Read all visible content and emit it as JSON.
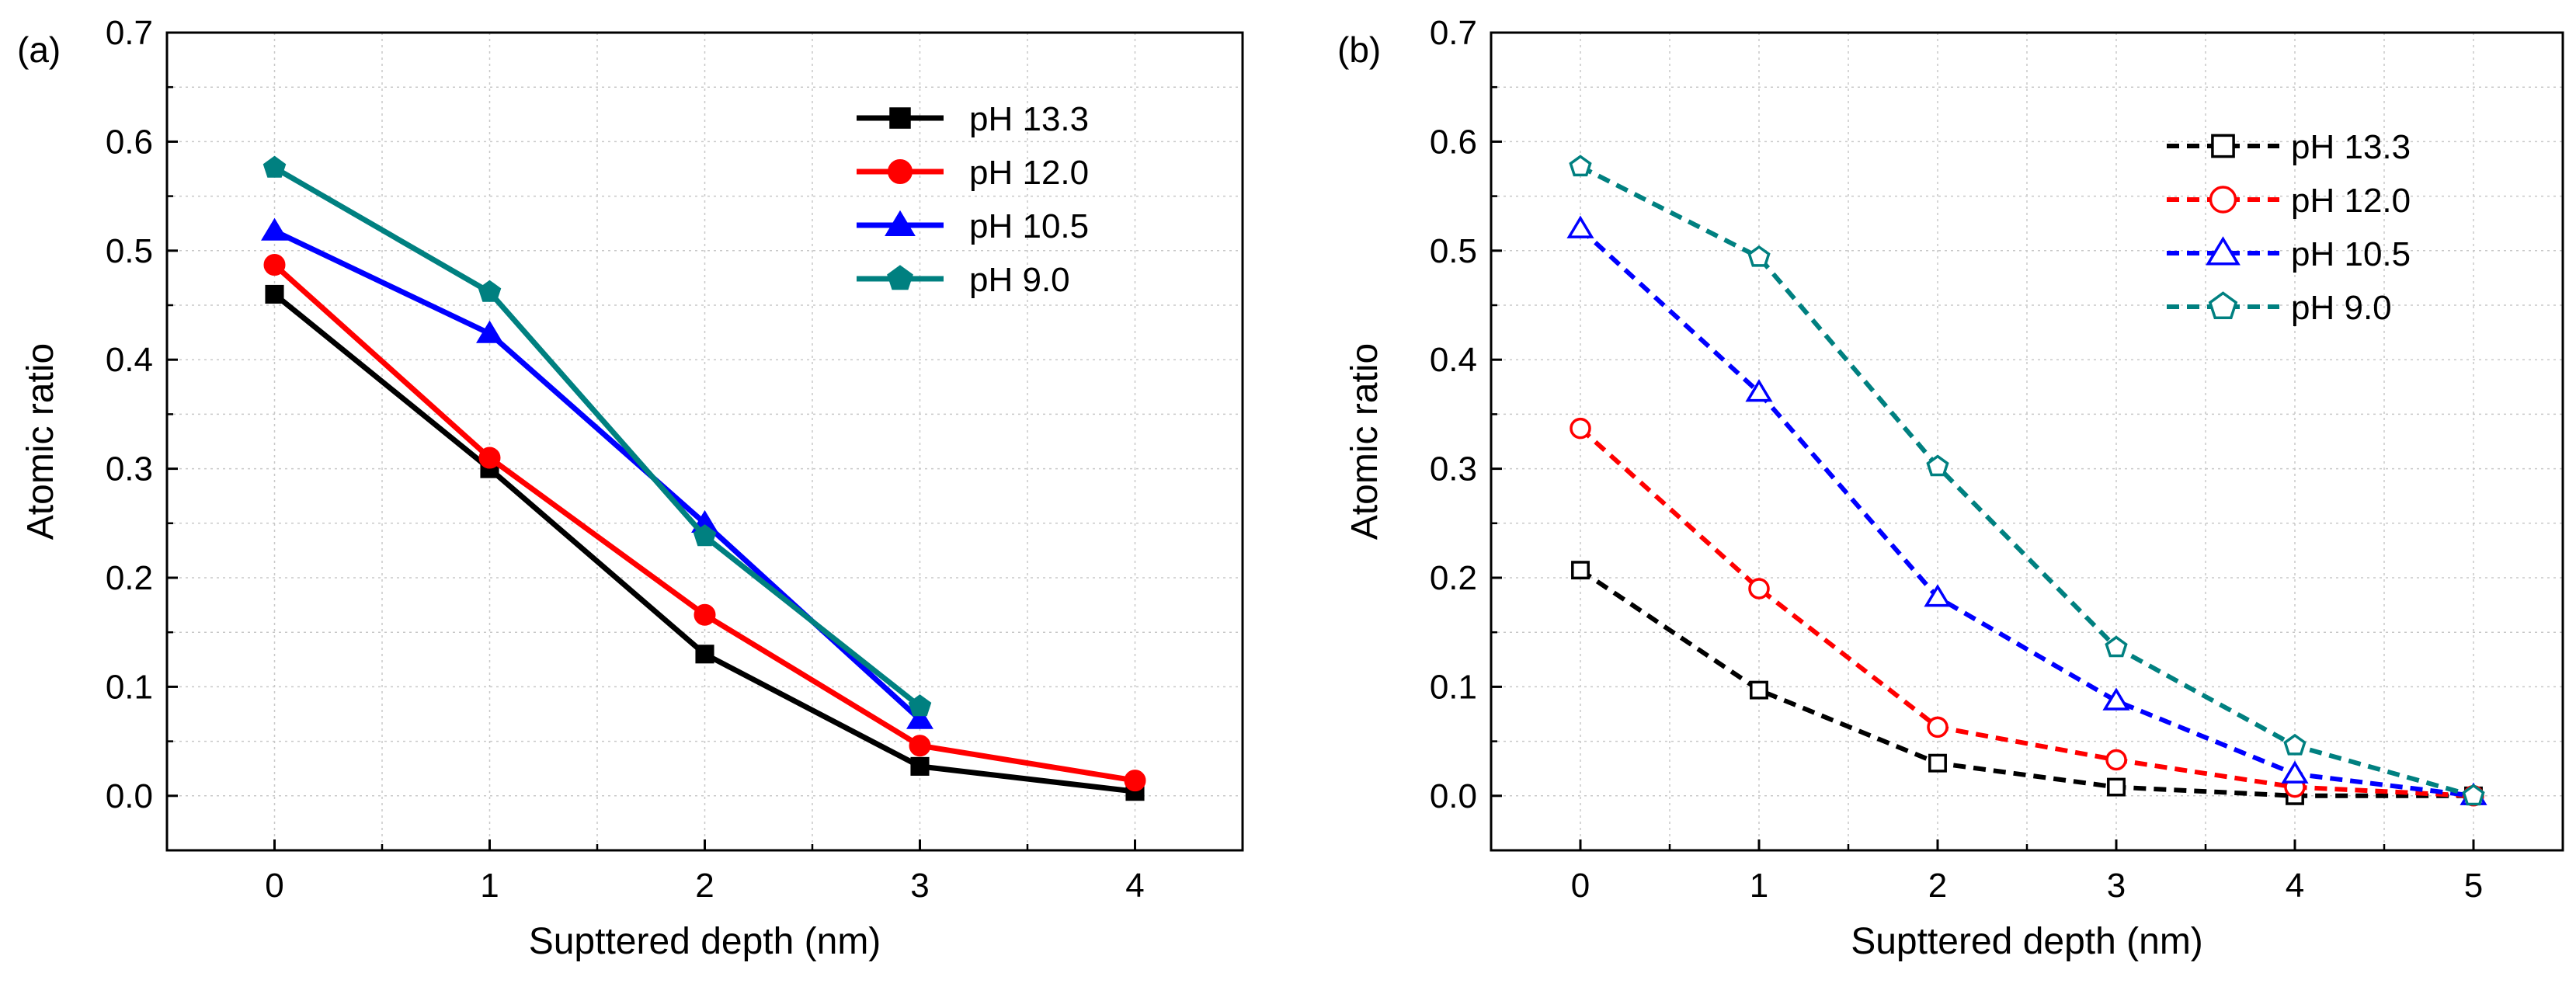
{
  "chart_data": [
    {
      "panel_label": "(a)",
      "type": "line",
      "xlabel": "Supttered depth (nm)",
      "ylabel": "Atomic ratio",
      "xlim": [
        -0.5,
        4.5
      ],
      "ylim": [
        -0.05,
        0.7
      ],
      "x_ticks": [
        "0",
        "1",
        "2",
        "3",
        "4"
      ],
      "y_ticks": [
        "0.0",
        "0.1",
        "0.2",
        "0.3",
        "0.4",
        "0.5",
        "0.6",
        "0.7"
      ],
      "grid": true,
      "legend_position": "top-right",
      "marker_fill": "filled",
      "line_style": "solid",
      "series": [
        {
          "name": "pH 13.3",
          "color": "#000000",
          "marker": "square",
          "x": [
            0,
            1,
            2,
            3,
            4
          ],
          "values": [
            0.46,
            0.3,
            0.13,
            0.027,
            0.004
          ]
        },
        {
          "name": "pH 12.0",
          "color": "#ff0000",
          "marker": "circle",
          "x": [
            0,
            1,
            2,
            3,
            4
          ],
          "values": [
            0.487,
            0.31,
            0.166,
            0.046,
            0.014
          ]
        },
        {
          "name": "pH 10.5",
          "color": "#0000ff",
          "marker": "triangle",
          "x": [
            0,
            1,
            2,
            3
          ],
          "values": [
            0.518,
            0.424,
            0.25,
            0.07
          ]
        },
        {
          "name": "pH 9.0",
          "color": "#008080",
          "marker": "pentagon",
          "x": [
            0,
            1,
            2,
            3
          ],
          "values": [
            0.576,
            0.462,
            0.238,
            0.082
          ]
        }
      ]
    },
    {
      "panel_label": "(b)",
      "type": "line",
      "xlabel": "Supttered depth (nm)",
      "ylabel": "Atomic ratio",
      "xlim": [
        -0.5,
        5.5
      ],
      "ylim": [
        -0.05,
        0.7
      ],
      "x_ticks": [
        "0",
        "1",
        "2",
        "3",
        "4",
        "5"
      ],
      "y_ticks": [
        "0.0",
        "0.1",
        "0.2",
        "0.3",
        "0.4",
        "0.5",
        "0.6",
        "0.7"
      ],
      "grid": true,
      "legend_position": "top-right",
      "marker_fill": "open",
      "line_style": "dashed",
      "series": [
        {
          "name": "pH 13.3",
          "color": "#000000",
          "marker": "square",
          "x": [
            0,
            1,
            2,
            3,
            4,
            5
          ],
          "values": [
            0.207,
            0.097,
            0.03,
            0.008,
            0.0,
            0.0
          ]
        },
        {
          "name": "pH 12.0",
          "color": "#ff0000",
          "marker": "circle",
          "x": [
            0,
            1,
            2,
            3,
            4,
            5
          ],
          "values": [
            0.337,
            0.19,
            0.063,
            0.033,
            0.008,
            0.0
          ]
        },
        {
          "name": "pH 10.5",
          "color": "#0000ff",
          "marker": "triangle",
          "x": [
            0,
            1,
            2,
            3,
            4,
            5
          ],
          "values": [
            0.52,
            0.37,
            0.182,
            0.087,
            0.02,
            0.0
          ]
        },
        {
          "name": "pH 9.0",
          "color": "#008080",
          "marker": "pentagon",
          "x": [
            0,
            1,
            2,
            3,
            4,
            5
          ],
          "values": [
            0.577,
            0.494,
            0.302,
            0.136,
            0.046,
            0.0
          ]
        }
      ]
    }
  ]
}
